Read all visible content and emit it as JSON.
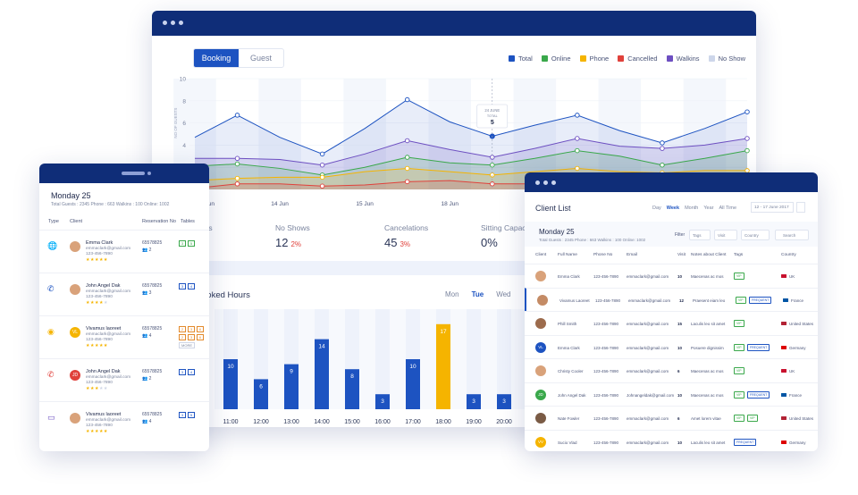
{
  "colors": {
    "total": "#1d53c1",
    "online": "#3aa84b",
    "phone": "#f5b400",
    "cancelled": "#e0413b",
    "walkins": "#6d4fc1",
    "noshow": "#cdd6ea"
  },
  "main": {
    "tabs": [
      {
        "label": "Booking",
        "active": true
      },
      {
        "label": "Guest",
        "active": false
      }
    ],
    "legend": [
      "Total",
      "Online",
      "Phone",
      "Cancelled",
      "Walkins",
      "No Show"
    ],
    "stats": [
      {
        "label": "ests",
        "value": "",
        "pct": ""
      },
      {
        "label": "No Shows",
        "value": "12",
        "pct": "2%"
      },
      {
        "label": "Cancelations",
        "value": "45",
        "pct": "3%"
      },
      {
        "label": "Sitting Capac",
        "value": "0%",
        "pct": ""
      }
    ],
    "booked_hours_title": "ooked Hours",
    "days": [
      {
        "label": "Mon",
        "active": false
      },
      {
        "label": "Tue",
        "active": true
      },
      {
        "label": "Wed",
        "active": false
      }
    ],
    "tooltip": {
      "date": "24 JUNE",
      "label": "TOTAL",
      "value": "5"
    }
  },
  "chart_data": [
    {
      "type": "line",
      "ylabel": "NO OF GUESTS",
      "ylim": [
        0,
        10
      ],
      "yticks": [
        "0",
        "2",
        "4",
        "6",
        "8",
        "10"
      ],
      "x_labels": [
        {
          "label": "8 Jun",
          "i": 0
        },
        {
          "label": "14 Jun",
          "i": 2
        },
        {
          "label": "15 Jun",
          "i": 4
        },
        {
          "label": "18 Jun",
          "i": 6
        }
      ],
      "series": [
        {
          "name": "Total",
          "values": [
            4.7,
            6.7,
            4.7,
            3.2,
            5.5,
            8.1,
            6.1,
            4.8,
            5.8,
            6.7,
            5.3,
            4.2,
            5.5,
            7.0
          ]
        },
        {
          "name": "Walkins",
          "values": [
            2.8,
            2.8,
            2.7,
            2.2,
            3.2,
            4.4,
            3.6,
            2.9,
            3.7,
            4.6,
            3.9,
            3.7,
            4.0,
            4.6
          ]
        },
        {
          "name": "Online",
          "values": [
            2.1,
            2.3,
            1.9,
            1.3,
            2.0,
            2.9,
            2.4,
            2.2,
            2.8,
            3.5,
            3.0,
            2.2,
            2.8,
            3.5
          ]
        },
        {
          "name": "Phone",
          "values": [
            0.8,
            1.0,
            1.1,
            1.1,
            1.6,
            1.9,
            1.6,
            1.3,
            1.6,
            1.9,
            1.6,
            1.5,
            1.7,
            1.7
          ]
        },
        {
          "name": "Cancelled",
          "values": [
            0.1,
            0.5,
            0.5,
            0.3,
            0.4,
            0.7,
            0.8,
            0.5,
            0.5,
            0.6,
            0.6,
            0.5,
            0.7,
            0.9
          ]
        }
      ]
    },
    {
      "type": "bar",
      "categories": [
        "11:00",
        "12:00",
        "13:00",
        "14:00",
        "15:00",
        "16:00",
        "17:00",
        "18:00",
        "19:00",
        "20:00"
      ],
      "values": [
        10,
        6,
        9,
        14,
        8,
        3,
        10,
        17,
        3,
        3
      ],
      "highlight_index": 7
    }
  ],
  "left": {
    "date": "Monday 25",
    "summary": "Total Guests : 2345    Phone : 663    Walkins : 100    Online: 1002",
    "headers": [
      "Type",
      "Client",
      "Reservation No",
      "Tables"
    ],
    "rows": [
      {
        "icon": "globe-icon",
        "glyph": "🌐",
        "name": "Emma Clark",
        "email": "emmaclark@gmail.com",
        "phone": "123-456-7890",
        "res": "65578825",
        "guests": "2",
        "rating": 5,
        "tables": [
          "3",
          "5"
        ],
        "color": "#3aa84b",
        "initials": ""
      },
      {
        "icon": "phone-icon",
        "glyph": "✆",
        "name": "John Angel Dak",
        "email": "emmaclark@gmail.com",
        "phone": "123-456-7890",
        "res": "65578825",
        "guests": "3",
        "rating": 4,
        "tables": [
          "3",
          "4"
        ],
        "color": "#1d53c1",
        "initials": ""
      },
      {
        "icon": "walk-in-icon",
        "glyph": "◉",
        "name": "Vivamus laoreet",
        "email": "emmaclark@gmail.com",
        "phone": "123-456-7890",
        "res": "65578825",
        "guests": "4",
        "rating": 5,
        "tables": [
          "2",
          "3",
          "6",
          "2",
          "3",
          "6"
        ],
        "more": "MORE",
        "color": "#f5b400",
        "initials": "VL"
      },
      {
        "icon": "cancel-icon",
        "glyph": "✆",
        "name": "John Angel Dak",
        "email": "emmaclark@gmail.com",
        "phone": "123-456-7890",
        "res": "65578825",
        "guests": "2",
        "rating": 3,
        "tables": [
          "3",
          "4"
        ],
        "color": "#e0413b",
        "initials": "JD"
      },
      {
        "icon": "chat-icon",
        "glyph": "▭",
        "name": "Vivamus laoreet",
        "email": "emmaclark@gmail.com",
        "phone": "123-456-7890",
        "res": "65578825",
        "guests": "4",
        "rating": 5,
        "tables": [
          "3",
          "5"
        ],
        "color": "#6d4fc1",
        "initials": ""
      }
    ]
  },
  "right": {
    "title": "Client List",
    "ranges": [
      {
        "label": "Day",
        "active": false
      },
      {
        "label": "Week",
        "active": true
      },
      {
        "label": "Month",
        "active": false
      },
      {
        "label": "Year",
        "active": false
      },
      {
        "label": "All Time",
        "active": false
      }
    ],
    "date_range": "12 - 17 June 2017",
    "day": "Monday 25",
    "summary": "Total Guests : 2345    Phone : 663    Walkins : 100    Online: 1002",
    "filter_label": "Filter",
    "filters": [
      "Tags",
      "Visit",
      "Country",
      "Search"
    ],
    "headers": [
      "Client",
      "Full Name",
      "Phone No",
      "Email",
      "Visit",
      "Notes about Client",
      "Tags",
      "Country"
    ],
    "rows": [
      {
        "name": "Emma Clark",
        "phone": "123-456-7890",
        "email": "emmaclark@gmail.com",
        "visit": "10",
        "notes": "Maecenas ac mos",
        "tags": [
          "VIP"
        ],
        "country": "UK",
        "avatar": "#d9a27a",
        "initials": ""
      },
      {
        "name": "Vivamus Laoreet",
        "phone": "123-456-7890",
        "email": "emmaclark@gmail.com",
        "visit": "12",
        "notes": "Praesent eiam leo",
        "tags": [
          "VIP",
          "FREQUENT"
        ],
        "country": "France",
        "avatar": "#c48b65",
        "initials": "",
        "selected": true
      },
      {
        "name": "Phill Smith",
        "phone": "123-456-7890",
        "email": "emmaclark@gmail.com",
        "visit": "15",
        "notes": "Laculis leo sit amet",
        "tags": [
          "VIP"
        ],
        "country": "United States",
        "avatar": "#9c6b4c",
        "initials": ""
      },
      {
        "name": "Emma Clark",
        "phone": "123-456-7890",
        "email": "emmaclark@gmail.com",
        "visit": "10",
        "notes": "Posuere dignissim",
        "tags": [
          "VIP",
          "FREQUENT"
        ],
        "country": "Germany",
        "avatar": "#1d53c1",
        "initials": "VL"
      },
      {
        "name": "Christy Cooler",
        "phone": "123-456-7890",
        "email": "emmaclark@gmail.com",
        "visit": "6",
        "notes": "Maecenas ac mos",
        "tags": [
          "VIP"
        ],
        "country": "UK",
        "avatar": "#d9a27a",
        "initials": ""
      },
      {
        "name": "John Angel Dak",
        "phone": "123-456-7890",
        "email": "Johnangeldak@gmail.com",
        "visit": "10",
        "notes": "Maecenas ac mos",
        "tags": [
          "VIP",
          "FREQUENT"
        ],
        "country": "France",
        "avatar": "#3aa84b",
        "initials": "JD"
      },
      {
        "name": "Nate Fowler",
        "phone": "123-456-7890",
        "email": "emmaclark@gmail.com",
        "visit": "6",
        "notes": "Amet lorem vitae",
        "tags": [
          "VIP",
          "VIP"
        ],
        "country": "United States",
        "avatar": "#7a5b45",
        "initials": ""
      },
      {
        "name": "Sucio Vlad",
        "phone": "123-456-7890",
        "email": "emmaclark@gmail.com",
        "visit": "10",
        "notes": "Laculis leo sit amet",
        "tags": [
          "FREQUENT"
        ],
        "country": "Germany",
        "avatar": "#f5b400",
        "initials": "VV"
      }
    ]
  }
}
